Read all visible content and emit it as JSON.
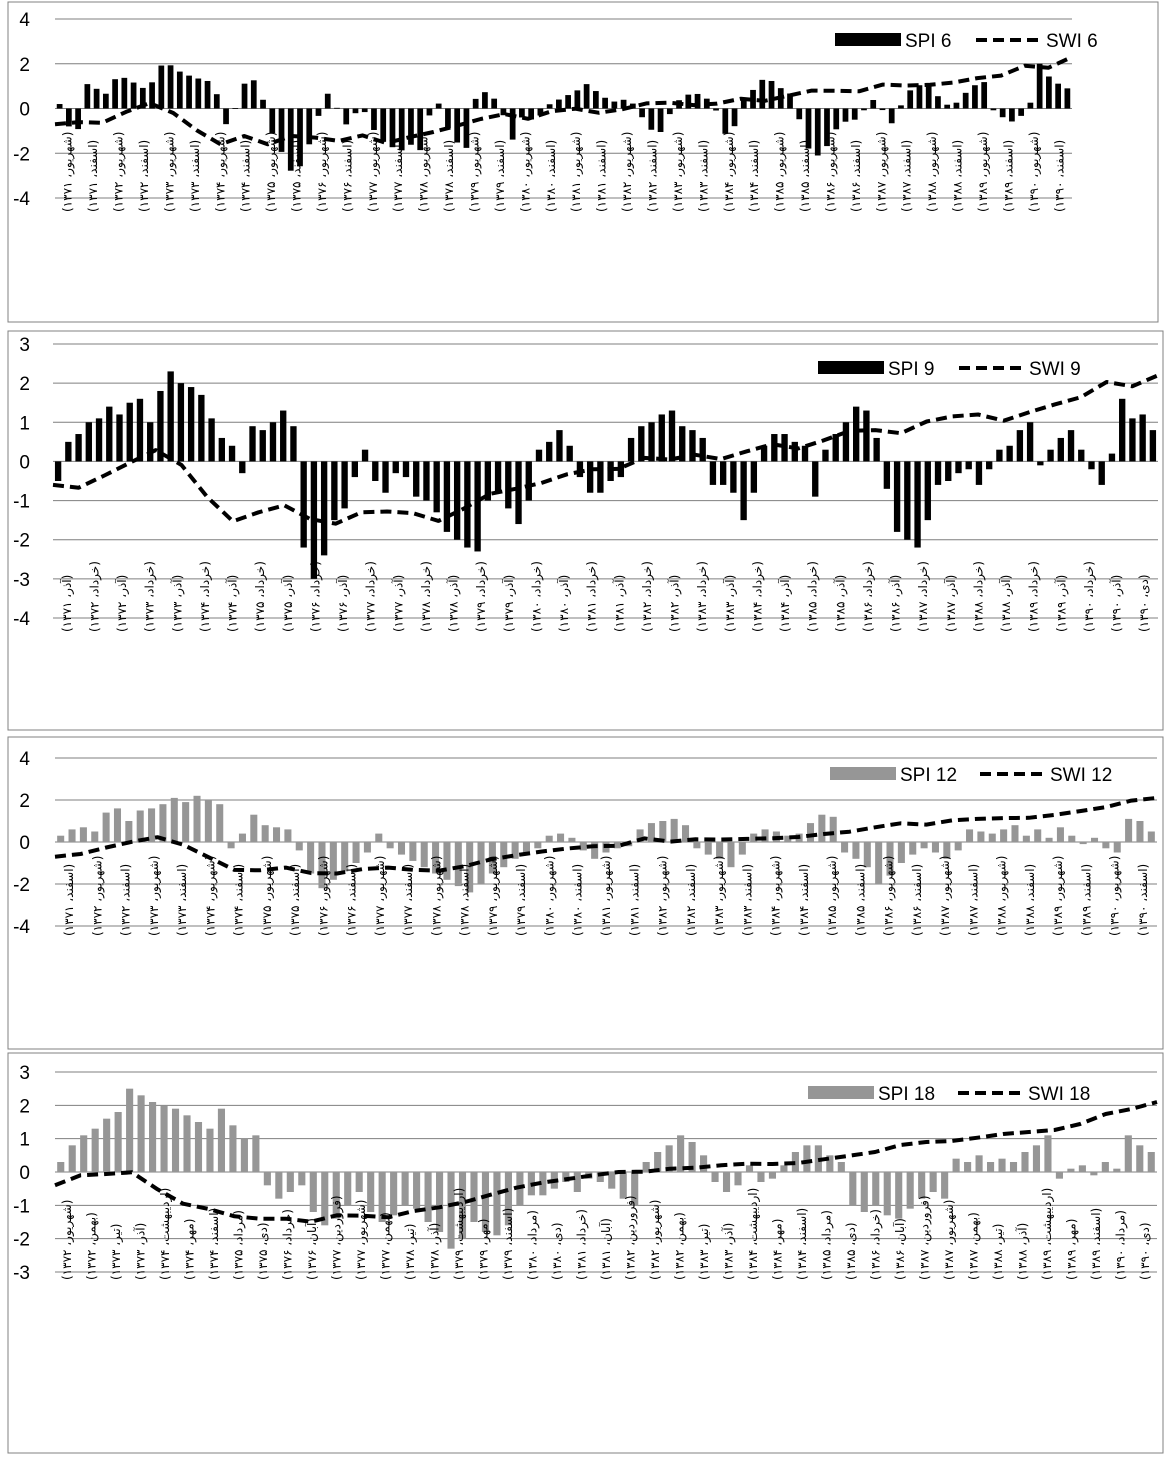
{
  "chart_data": [
    {
      "type": "bar",
      "y_ticks": [
        "4",
        "2",
        "0",
        "-2",
        "-4"
      ],
      "ylim": [
        -4,
        4
      ],
      "grid": true,
      "legend_position": "top-right",
      "series": [
        {
          "name": "SPI 6",
          "kind": "bar",
          "color": "#000000",
          "anchors": [
            0.2,
            -0.8,
            -1.0,
            1.1,
            0.9,
            0.6,
            1.3,
            1.4,
            1.2,
            0.9,
            1.0,
            1.9,
            2.0,
            1.7,
            1.5,
            1.4,
            1.2,
            1.3,
            -0.8,
            -0.5,
            1.0,
            1.3,
            1.2,
            -0.8,
            -1.5,
            -2.5,
            -3.1,
            -2.0,
            -1.2,
            0.5,
            0.8,
            -0.6,
            -0.8,
            0.2,
            -0.4,
            -1.3,
            -1.6,
            -1.8,
            -1.9,
            -1.5,
            -2.0,
            0.3,
            0.2,
            -1.2,
            -1.6,
            -1.8,
            0.9,
            0.7,
            0.4,
            -0.4,
            -1.5,
            -0.3,
            -0.5,
            -0.3,
            0.2,
            0.4,
            0.6,
            0.8,
            1.1,
            0.8,
            0.5,
            0.3,
            0.4,
            0.3,
            -0.3,
            -0.9,
            -1.2,
            -0.4,
            0.3,
            0.6,
            0.7,
            0.5,
            0.3,
            -1.0,
            -1.4,
            0.4,
            0.6,
            1.2,
            1.4,
            1.0,
            0.8,
            0.5,
            -1.6,
            -2.0,
            -2.2,
            -1.2,
            -0.7,
            -0.5,
            -0.5,
            0.2,
            0.5,
            -0.4,
            -0.8,
            0.6,
            0.9,
            1.1,
            1.0,
            0.4,
            0.1,
            0.3,
            0.8,
            1.1,
            1.2,
            -0.3,
            -0.4,
            -0.6,
            -0.3,
            0.3,
            2.1,
            1.4,
            1.1,
            0.9
          ],
          "values": []
        },
        {
          "name": "SWI 6",
          "kind": "line",
          "color": "#000000",
          "anchors": [
            -0.7,
            -0.6,
            -0.7,
            -0.4,
            0.5,
            -0.2,
            -0.2,
            -1.6,
            -1.6,
            -1.1,
            -1.7,
            -1.2,
            -1.3,
            -1.5,
            -1.1,
            -1.6,
            -1.4,
            -1.1,
            -1.0,
            -0.6,
            -0.4,
            -0.2,
            -0.5,
            -0.1,
            0.0,
            -0.2,
            -0.1,
            0.2,
            0.3,
            0.2,
            0.1,
            0.3,
            0.5,
            0.3,
            0.6,
            0.8,
            0.8,
            0.7,
            1.1,
            1.0,
            1.1,
            1.0,
            1.3,
            1.4,
            1.5,
            2.0,
            1.8,
            2.3
          ],
          "values": []
        }
      ],
      "x_labels": [
        "(شهریور، ۱۳۷۱)",
        "(اسفند، ۱۳۷۱)",
        "(شهریور، ۱۳۷۲)",
        "(اسفند، ۱۳۷۲)",
        "(شهریور، ۱۳۷۳)",
        "(اسفند، ۱۳۷۳)",
        "(شهریور، ۱۳۷۴)",
        "(اسفند، ۱۳۷۴)",
        "(شهریور، ۱۳۷۵)",
        "(اسفند، ۱۳۷۵)",
        "(شهریور، ۱۳۷۶)",
        "(اسفند، ۱۳۷۶)",
        "(شهریور، ۱۳۷۷)",
        "(اسفند، ۱۳۷۷)",
        "(شهریور، ۱۳۷۸)",
        "(اسفند، ۱۳۷۸)",
        "(شهریور، ۱۳۷۹)",
        "(اسفند، ۱۳۷۹)",
        "(شهریور، ۱۳۸۰)",
        "(اسفند، ۱۳۸۰)",
        "(شهریور، ۱۳۸۱)",
        "(اسفند، ۱۳۸۱)",
        "(شهریور، ۱۳۸۲)",
        "(اسفند، ۱۳۸۲)",
        "(شهریور، ۱۳۸۳)",
        "(اسفند، ۱۳۸۳)",
        "(شهریور، ۱۳۸۴)",
        "(اسفند، ۱۳۸۴)",
        "(شهریور، ۱۳۸۵)",
        "(اسفند، ۱۳۸۵)",
        "(شهریور، ۱۳۸۶)",
        "(اسفند، ۱۳۸۶)",
        "(شهریور، ۱۳۸۷)",
        "(اسفند، ۱۳۸۷)",
        "(شهریور، ۱۳۸۸)",
        "(اسفند، ۱۳۸۸)",
        "(شهریور، ۱۳۸۹)",
        "(اسفند، ۱۳۸۹)",
        "(شهریور، ۱۳۹۰)",
        "(اسفند، ۱۳۹۰)"
      ]
    },
    {
      "type": "bar",
      "y_ticks": [
        "3",
        "2",
        "1",
        "0",
        "-1",
        "-2",
        "-3",
        "-4"
      ],
      "ylim": [
        -4,
        3
      ],
      "grid": true,
      "legend_position": "top-right",
      "series": [
        {
          "name": "SPI 9",
          "kind": "bar",
          "color": "#000000",
          "anchors": [
            -0.5,
            0.5,
            0.7,
            1.0,
            1.1,
            1.4,
            1.2,
            1.5,
            1.6,
            1.0,
            1.8,
            2.3,
            2.0,
            1.9,
            1.7,
            1.1,
            0.6,
            0.4,
            -0.3,
            0.9,
            0.8,
            1.0,
            1.3,
            0.9,
            -2.2,
            -3.0,
            -2.4,
            -1.5,
            -1.2,
            -0.4,
            0.3,
            -0.5,
            -0.8,
            -0.3,
            -0.4,
            -0.9,
            -1.0,
            -1.3,
            -1.8,
            -2.0,
            -2.2,
            -2.3,
            -1.0,
            -0.8,
            -1.2,
            -1.6,
            -1.0,
            0.3,
            0.5,
            0.8,
            0.4,
            -0.4,
            -0.8,
            -0.8,
            -0.5,
            -0.4,
            0.6,
            0.9,
            1.0,
            1.2,
            1.3,
            0.9,
            0.8,
            0.6,
            -0.6,
            -0.6,
            -0.8,
            -1.5,
            -0.8,
            0.4,
            0.7,
            0.7,
            0.5,
            0.4,
            -0.9,
            0.3,
            0.7,
            1.0,
            1.4,
            1.3,
            0.6,
            -0.7,
            -1.8,
            -2.0,
            -2.2,
            -1.5,
            -0.6,
            -0.5,
            -0.3,
            -0.2,
            -0.6,
            -0.2,
            0.3,
            0.4,
            0.8,
            1.0,
            -0.1,
            0.3,
            0.6,
            0.8,
            0.3,
            -0.2,
            -0.6,
            0.2,
            1.6,
            1.1,
            1.2,
            0.8
          ],
          "values": []
        },
        {
          "name": "SWI 9",
          "kind": "line",
          "color": "#000000",
          "anchors": [
            -0.6,
            -0.7,
            -0.4,
            -0.2,
            0.4,
            0.1,
            -0.3,
            -1.4,
            -1.6,
            -1.2,
            -1.1,
            -1.5,
            -1.6,
            -1.3,
            -1.3,
            -1.2,
            -1.6,
            -1.4,
            -1.0,
            -0.7,
            -0.7,
            -0.5,
            -0.3,
            -0.2,
            -0.2,
            0.1,
            0.0,
            0.2,
            0.1,
            0.0,
            0.5,
            0.4,
            0.3,
            0.6,
            0.8,
            0.8,
            0.7,
            1.0,
            1.1,
            1.3,
            1.0,
            1.1,
            1.4,
            1.5,
            1.7,
            2.1,
            1.9,
            2.2
          ],
          "values": []
        }
      ],
      "x_labels": [
        "(آذر، ۱۳۷۱)",
        "(خرداد، ۱۳۷۲)",
        "(آذر، ۱۳۷۲)",
        "(خرداد، ۱۳۷۳)",
        "(آذر، ۱۳۷۳)",
        "(خرداد، ۱۳۷۴)",
        "(آذر، ۱۳۷۴)",
        "(خرداد، ۱۳۷۵)",
        "(آذر، ۱۳۷۵)",
        "(خرداد، ۱۳۷۶)",
        "(آذر، ۱۳۷۶)",
        "(خرداد، ۱۳۷۷)",
        "(آذر، ۱۳۷۷)",
        "(خرداد، ۱۳۷۸)",
        "(آذر، ۱۳۷۸)",
        "(خرداد، ۱۳۷۹)",
        "(آذر، ۱۳۷۹)",
        "(خرداد، ۱۳۸۰)",
        "(آذر، ۱۳۸۰)",
        "(خرداد، ۱۳۸۱)",
        "(آذر، ۱۳۸۱)",
        "(خرداد، ۱۳۸۲)",
        "(آذر، ۱۳۸۲)",
        "(خرداد، ۱۳۸۳)",
        "(آذر، ۱۳۸۳)",
        "(خرداد، ۱۳۸۴)",
        "(آذر، ۱۳۸۴)",
        "(خرداد، ۱۳۸۵)",
        "(آذر، ۱۳۸۵)",
        "(خرداد، ۱۳۸۶)",
        "(آذر، ۱۳۸۶)",
        "(خرداد، ۱۳۸۷)",
        "(آذر، ۱۳۸۷)",
        "(خرداد، ۱۳۸۸)",
        "(آذر، ۱۳۸۸)",
        "(خرداد، ۱۳۸۹)",
        "(آذر، ۱۳۸۹)",
        "(خرداد، ۱۳۹۰)",
        "(آذر، ۱۳۹۰)",
        "(دی، ۱۳۹۰)"
      ]
    },
    {
      "type": "bar",
      "y_ticks": [
        "4",
        "2",
        "0",
        "-2",
        "-4"
      ],
      "ylim": [
        -4,
        4
      ],
      "grid": true,
      "legend_position": "top-right",
      "series": [
        {
          "name": "SPI 12",
          "kind": "bar",
          "color": "#969696",
          "anchors": [
            0.3,
            0.6,
            0.7,
            0.5,
            1.4,
            1.6,
            1.0,
            1.5,
            1.6,
            1.8,
            2.1,
            1.9,
            2.2,
            2.0,
            1.8,
            -0.3,
            0.4,
            1.3,
            0.8,
            0.7,
            0.6,
            -0.4,
            -1.5,
            -2.2,
            -1.8,
            -1.4,
            -1.0,
            -0.5,
            0.4,
            -0.3,
            -0.6,
            -0.9,
            -1.2,
            -1.5,
            -1.8,
            -2.1,
            -2.4,
            -2.0,
            -1.5,
            -1.2,
            -0.8,
            -0.6,
            -0.3,
            0.3,
            0.4,
            0.2,
            -0.4,
            -0.8,
            -0.5,
            -0.3,
            -0.2,
            0.6,
            0.9,
            1.0,
            1.1,
            0.8,
            -0.3,
            -0.6,
            -0.8,
            -1.2,
            -0.6,
            0.4,
            0.6,
            0.5,
            0.3,
            0.4,
            0.9,
            1.3,
            1.2,
            -0.5,
            -0.8,
            -1.2,
            -2.0,
            -1.6,
            -1.0,
            -0.6,
            -0.3,
            -0.5,
            -0.8,
            -0.4,
            0.6,
            0.5,
            0.4,
            0.6,
            0.8,
            0.3,
            0.6,
            0.2,
            0.7,
            0.3,
            -0.1,
            0.2,
            -0.3,
            -0.5,
            1.1,
            1.0,
            0.5
          ],
          "values": []
        },
        {
          "name": "SWI 12",
          "kind": "line",
          "color": "#000000",
          "anchors": [
            -0.7,
            -0.6,
            -0.3,
            -0.1,
            0.3,
            0.1,
            -0.4,
            -1.0,
            -1.5,
            -1.3,
            -1.2,
            -1.5,
            -1.5,
            -1.3,
            -1.2,
            -1.3,
            -1.4,
            -1.3,
            -1.0,
            -0.7,
            -0.6,
            -0.4,
            -0.3,
            -0.2,
            -0.2,
            0.2,
            0.0,
            0.1,
            0.2,
            0.0,
            0.3,
            0.1,
            0.3,
            0.4,
            0.5,
            0.7,
            0.9,
            0.8,
            1.0,
            1.1,
            1.1,
            1.2,
            1.1,
            1.4,
            1.5,
            1.7,
            2.0,
            2.1
          ],
          "values": []
        }
      ],
      "x_labels": [
        "(اسفند، ۱۳۷۱)",
        "(شهریور، ۱۳۷۲)",
        "(اسفند، ۱۳۷۲)",
        "(شهریور، ۱۳۷۳)",
        "(اسفند، ۱۳۷۳)",
        "(شهریور، ۱۳۷۴)",
        "(اسفند، ۱۳۷۴)",
        "(شهریور، ۱۳۷۵)",
        "(اسفند، ۱۳۷۵)",
        "(شهریور، ۱۳۷۶)",
        "(اسفند، ۱۳۷۶)",
        "(شهریور، ۱۳۷۷)",
        "(اسفند، ۱۳۷۷)",
        "(شهریور، ۱۳۷۸)",
        "(اسفند، ۱۳۷۸)",
        "(شهریور، ۱۳۷۹)",
        "(اسفند، ۱۳۷۹)",
        "(شهریور، ۱۳۸۰)",
        "(اسفند، ۱۳۸۰)",
        "(شهریور، ۱۳۸۱)",
        "(اسفند، ۱۳۸۱)",
        "(شهریور، ۱۳۸۲)",
        "(اسفند، ۱۳۸۲)",
        "(شهریور، ۱۳۸۳)",
        "(اسفند، ۱۳۸۳)",
        "(شهریور، ۱۳۸۴)",
        "(اسفند، ۱۳۸۴)",
        "(شهریور، ۱۳۸۵)",
        "(اسفند، ۱۳۸۵)",
        "(شهریور، ۱۳۸۶)",
        "(اسفند، ۱۳۸۶)",
        "(شهریور، ۱۳۸۷)",
        "(اسفند، ۱۳۸۷)",
        "(شهریور، ۱۳۸۸)",
        "(اسفند، ۱۳۸۸)",
        "(شهریور، ۱۳۸۹)",
        "(اسفند، ۱۳۸۹)",
        "(شهریور، ۱۳۹۰)",
        "(اسفند، ۱۳۹۰)"
      ]
    },
    {
      "type": "bar",
      "y_ticks": [
        "3",
        "2",
        "1",
        "0",
        "-1",
        "-2",
        "-3"
      ],
      "ylim": [
        -3,
        3
      ],
      "grid": true,
      "legend_position": "top-right",
      "series": [
        {
          "name": "SPI 18",
          "kind": "bar",
          "color": "#969696",
          "anchors": [
            0.3,
            0.8,
            1.1,
            1.3,
            1.6,
            1.8,
            2.5,
            2.3,
            2.1,
            2.0,
            1.9,
            1.7,
            1.5,
            1.3,
            1.9,
            1.4,
            1.0,
            1.1,
            -0.4,
            -0.8,
            -0.6,
            -0.4,
            -1.2,
            -1.6,
            -1.4,
            -1.0,
            -0.6,
            -1.2,
            -1.5,
            -1.3,
            -1.0,
            -1.1,
            -1.5,
            -1.8,
            -2.3,
            -2.0,
            -1.5,
            -1.8,
            -1.9,
            -1.6,
            -1.0,
            -0.7,
            -0.7,
            -0.5,
            -0.3,
            -0.6,
            -0.2,
            -0.3,
            -0.5,
            -0.8,
            -1.0,
            0.3,
            0.6,
            0.8,
            1.1,
            0.9,
            0.5,
            -0.3,
            -0.6,
            -0.4,
            0.2,
            -0.3,
            -0.2,
            0.2,
            0.6,
            0.8,
            0.8,
            0.5,
            0.3,
            -1.0,
            -1.2,
            -1.0,
            -1.3,
            -1.4,
            -1.1,
            -0.8,
            -0.6,
            -0.8,
            0.4,
            0.3,
            0.5,
            0.3,
            0.4,
            0.3,
            0.6,
            0.8,
            1.1,
            -0.2,
            0.1,
            0.2,
            -0.1,
            0.3,
            0.1,
            1.1,
            0.8,
            0.6
          ],
          "values": []
        },
        {
          "name": "SWI 18",
          "kind": "line",
          "color": "#000000",
          "anchors": [
            -0.4,
            -0.1,
            -0.1,
            0.1,
            -0.3,
            -0.9,
            -1.0,
            -1.2,
            -1.4,
            -1.4,
            -1.4,
            -1.5,
            -1.3,
            -1.3,
            -1.4,
            -1.2,
            -1.1,
            -1.0,
            -0.8,
            -0.6,
            -0.4,
            -0.3,
            -0.2,
            -0.1,
            0.0,
            0.0,
            0.1,
            0.1,
            0.2,
            0.2,
            0.3,
            0.2,
            0.3,
            0.4,
            0.5,
            0.6,
            0.8,
            0.9,
            0.9,
            1.0,
            1.1,
            1.2,
            1.2,
            1.3,
            1.5,
            1.8,
            1.9,
            2.1
          ],
          "values": []
        }
      ],
      "x_labels": [
        "(شهریور، ۱۳۷۲)",
        "(بهمن، ۱۳۷۲)",
        "(تیر، ۱۳۷۳)",
        "(آذر، ۱۳۷۳)",
        "(اردیبهشت، ۱۳۷۴)",
        "(مهر، ۱۳۷۴)",
        "(اسفند، ۱۳۷۴)",
        "(مرداد، ۱۳۷۵)",
        "(دی، ۱۳۷۵)",
        "(خرداد، ۱۳۷۶)",
        "(آبان، ۱۳۷۶)",
        "(فروردین، ۱۳۷۷)",
        "(شهریور، ۱۳۷۷)",
        "(بهمن، ۱۳۷۷)",
        "(تیر، ۱۳۷۸)",
        "(آذر، ۱۳۷۸)",
        "(اردیبهشت، ۱۳۷۹)",
        "(مهر، ۱۳۷۹)",
        "(اسفند، ۱۳۷۹)",
        "(مرداد، ۱۳۸۰)",
        "(دی، ۱۳۸۰)",
        "(خرداد، ۱۳۸۱)",
        "(آبان، ۱۳۸۱)",
        "(فروردین، ۱۳۸۲)",
        "(شهریور، ۱۳۸۲)",
        "(بهمن، ۱۳۸۲)",
        "(تیر، ۱۳۸۳)",
        "(آذر، ۱۳۸۳)",
        "(اردیبهشت، ۱۳۸۴)",
        "(مهر، ۱۳۸۴)",
        "(اسفند، ۱۳۸۴)",
        "(مرداد، ۱۳۸۵)",
        "(دی، ۱۳۸۵)",
        "(خرداد، ۱۳۸۶)",
        "(آبان، ۱۳۸۶)",
        "(فروردین، ۱۳۸۷)",
        "(شهریور، ۱۳۸۷)",
        "(بهمن، ۱۳۸۷)",
        "(تیر، ۱۳۸۸)",
        "(آذر، ۱۳۸۸)",
        "(اردیبهشت، ۱۳۸۹)",
        "(مهر، ۱۳۸۹)",
        "(اسفند، ۱۳۸۹)",
        "(مرداد، ۱۳۹۰)",
        "(دی، ۱۳۹۰)"
      ]
    }
  ]
}
